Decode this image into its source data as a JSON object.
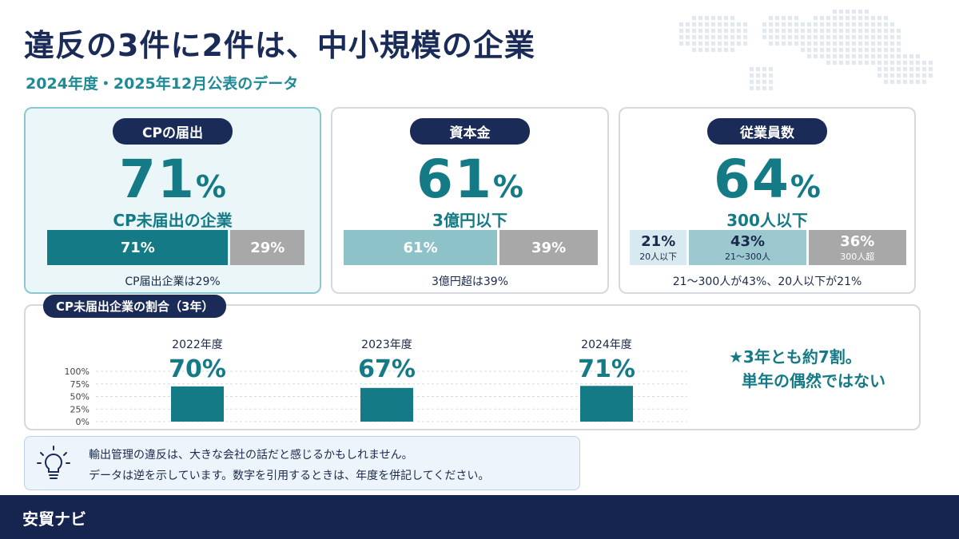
{
  "header": {
    "title": "違反の3件に2件は、中小規模の企業",
    "subtitle": "2024年度・2025年12月公表のデータ"
  },
  "cards": [
    {
      "label": "CPの届出",
      "big_number": "71",
      "big_unit": "%",
      "caption": "CP未届出の企業",
      "segments": [
        {
          "value": "71%",
          "share": 71,
          "color": "#147b86"
        },
        {
          "value": "29%",
          "share": 29,
          "color": "#a8a8a8"
        }
      ],
      "note": "CP届出企業は29%"
    },
    {
      "label": "資本金",
      "big_number": "61",
      "big_unit": "%",
      "caption": "3億円以下",
      "segments": [
        {
          "value": "61%",
          "share": 61,
          "color": "#8ec2c9"
        },
        {
          "value": "39%",
          "share": 39,
          "color": "#a8a8a8"
        }
      ],
      "note": "3億円超は39%"
    },
    {
      "label": "従業員数",
      "big_number": "64",
      "big_unit": "%",
      "caption": "300人以下",
      "segments": [
        {
          "value": "21%",
          "sub": "20人以下",
          "share": 21,
          "color": "#d8eaf0",
          "text_color": "#1a2a4a"
        },
        {
          "value": "43%",
          "sub": "21〜300人",
          "share": 43,
          "color": "#9cc8cf",
          "text_color": "#1a2a4a"
        },
        {
          "value": "36%",
          "sub": "300人超",
          "share": 36,
          "color": "#a8a8a8",
          "text_color": "#ffffff"
        }
      ],
      "note": "21〜300人が43%、20人以下が21%"
    }
  ],
  "trend": {
    "label": "CP未届出企業の割合（3年）",
    "callout_line1": "★3年とも約7割。",
    "callout_line2": "単年の偶然ではない"
  },
  "chart_data": {
    "type": "bar",
    "title": "CP未届出企業の割合（3年）",
    "categories": [
      "2022年度",
      "2023年度",
      "2024年度"
    ],
    "values": [
      70,
      67,
      71
    ],
    "value_labels": [
      "70%",
      "67%",
      "71%"
    ],
    "ylim": [
      0,
      100
    ],
    "yticks": [
      "0%",
      "25%",
      "50%",
      "75%",
      "100%"
    ],
    "grid": true,
    "bar_color": "#147b86"
  },
  "tip": {
    "line1": "輸出管理の違反は、大きな会社の話だと感じるかもしれません。",
    "line2": "データは逆を示しています。数字を引用するときは、年度を併記してください。"
  },
  "footer": {
    "brand": "安貿ナビ"
  },
  "colors": {
    "navy": "#1b2b57",
    "teal": "#147b86",
    "gray": "#a8a8a8"
  },
  "icons": [
    "lightbulb-icon",
    "world-map-icon"
  ]
}
